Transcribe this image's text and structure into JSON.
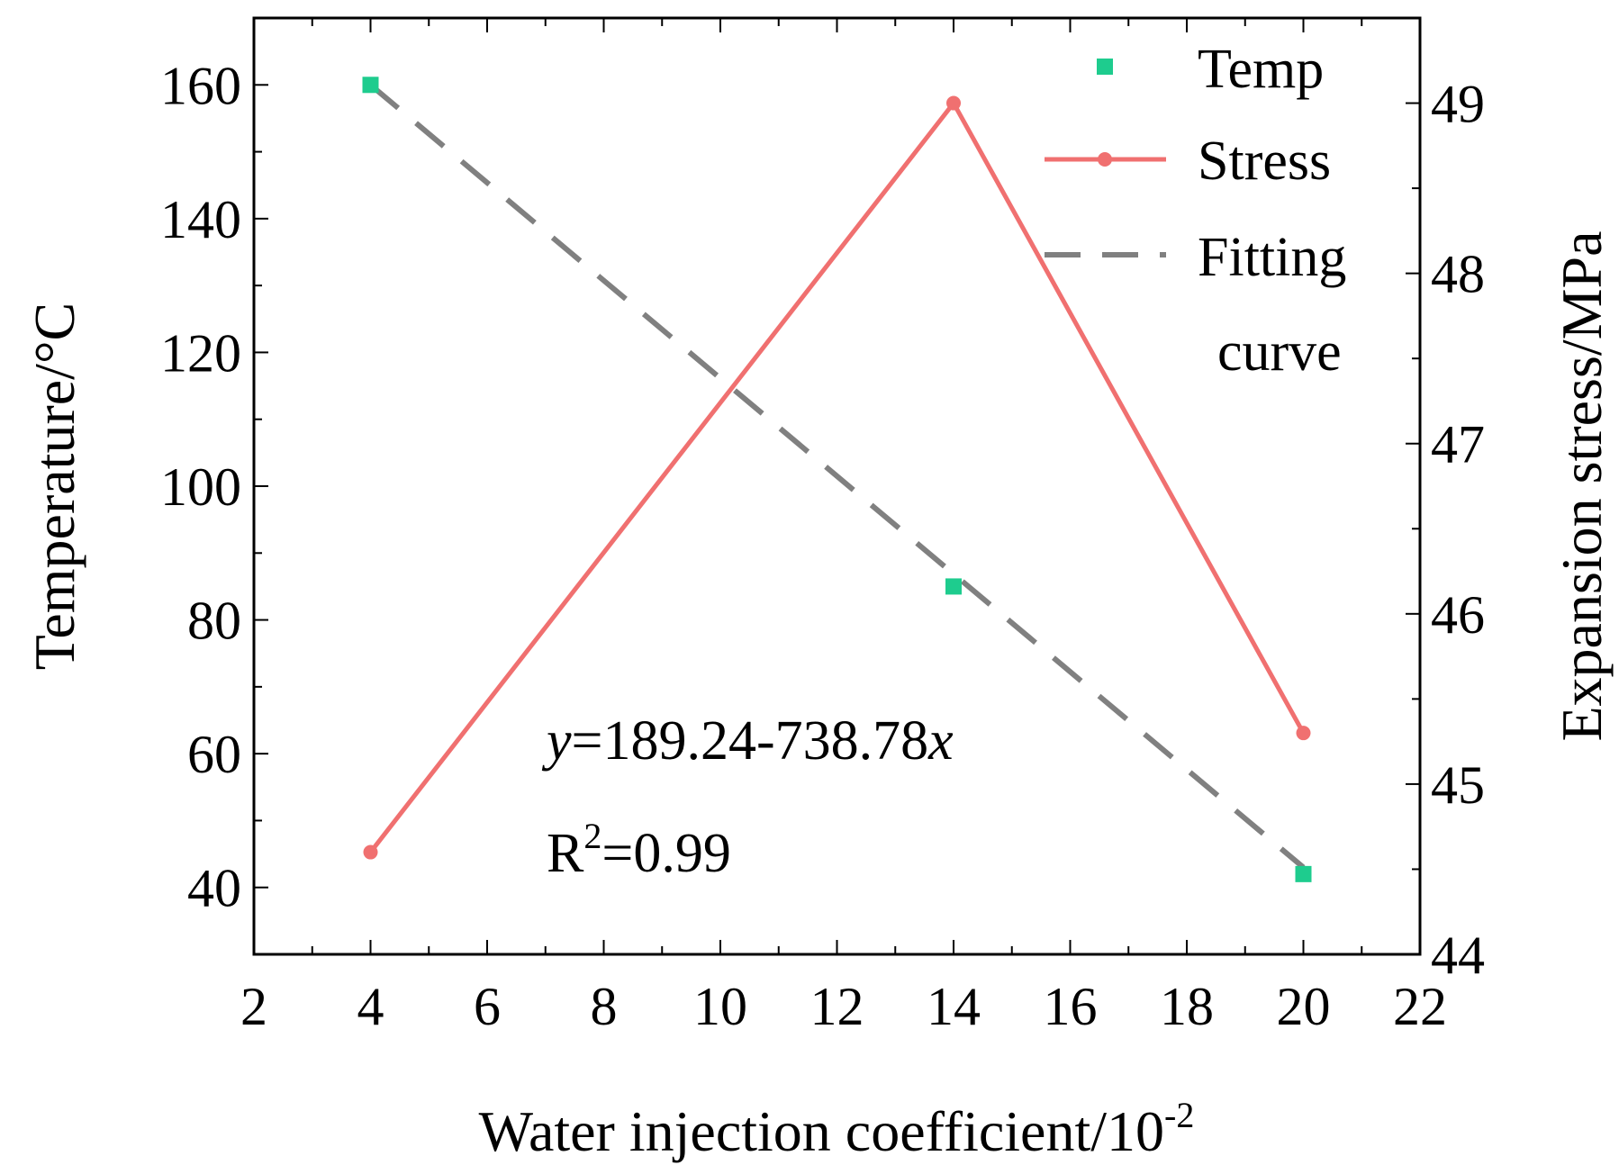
{
  "chart_data": {
    "type": "line",
    "x_axis": {
      "label": "Water injection coefficient/",
      "label_unit_base": "10",
      "label_unit_exp": "-2",
      "range": [
        2,
        22
      ],
      "ticks": [
        2,
        4,
        6,
        8,
        10,
        12,
        14,
        16,
        18,
        20,
        22
      ],
      "tick_labels": [
        "2",
        "4",
        "6",
        "8",
        "10",
        "12",
        "14",
        "16",
        "18",
        "20",
        "22"
      ]
    },
    "y_left": {
      "label": "Temperature/°C",
      "range": [
        30,
        170
      ],
      "ticks": [
        40,
        60,
        80,
        100,
        120,
        140,
        160
      ],
      "tick_labels": [
        "40",
        "60",
        "80",
        "100",
        "120",
        "140",
        "160"
      ]
    },
    "y_right": {
      "label": "Expansion stress/MPa",
      "range": [
        44,
        49.5
      ],
      "ticks": [
        44,
        45,
        46,
        47,
        48,
        49
      ],
      "tick_labels": [
        "44",
        "45",
        "46",
        "47",
        "48",
        "49"
      ]
    },
    "series": [
      {
        "name": "Temp",
        "type": "scatter",
        "axis": "left",
        "color": "#1ecc8e",
        "x": [
          4,
          14,
          20
        ],
        "y": [
          160,
          85,
          42
        ]
      },
      {
        "name": "Stress",
        "type": "line",
        "axis": "right",
        "color": "#f07070",
        "x": [
          4,
          14,
          20
        ],
        "y": [
          44.6,
          49.0,
          45.3
        ]
      },
      {
        "name": "Fitting curve",
        "type": "dashed-line",
        "axis": "left",
        "color": "#808080",
        "x": [
          4,
          20
        ],
        "y": [
          160,
          43
        ]
      }
    ],
    "legend": {
      "position": "top-right",
      "entries": [
        {
          "label": "Temp"
        },
        {
          "label": "Stress"
        },
        {
          "label_line1": "Fitting",
          "label_line2": "curve"
        }
      ]
    },
    "annotations": {
      "equation_y": "y",
      "equation_body": "=189.24-738.78",
      "equation_x": "x",
      "r2_base": "R",
      "r2_exp": "2",
      "r2_value": "=0.99"
    },
    "grid": false
  }
}
